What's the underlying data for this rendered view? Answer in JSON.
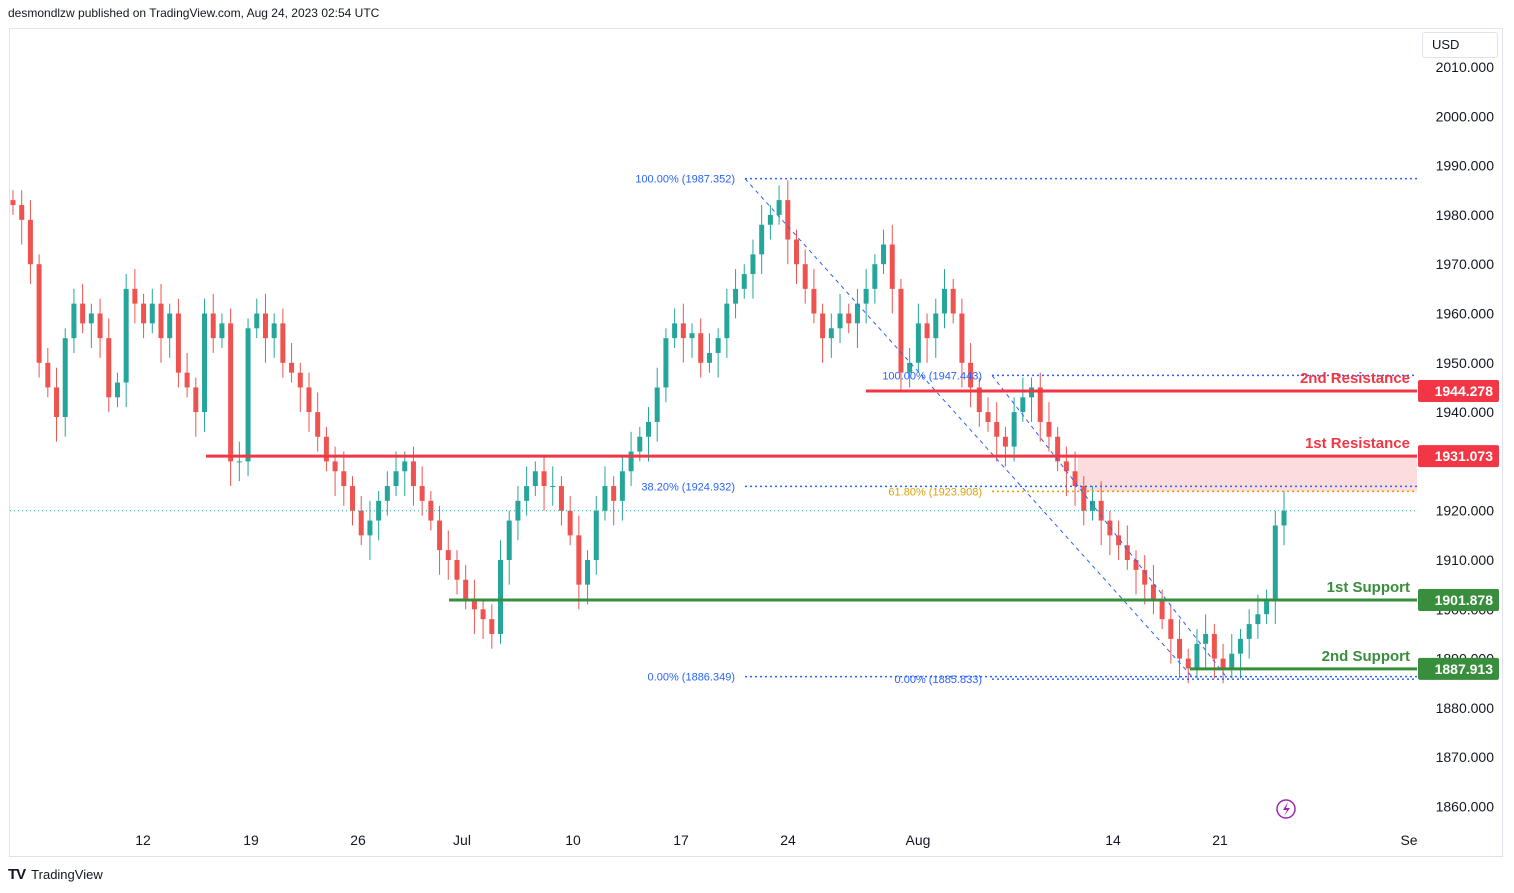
{
  "header": {
    "attribution": "desmondlzw published on TradingView.com, Aug 24, 2023 02:54 UTC"
  },
  "footer": {
    "logo": "TV",
    "brand": "TradingView"
  },
  "price_scale": {
    "currency": "USD"
  },
  "colors": {
    "up": "#26a69a",
    "down": "#ef5350",
    "resistance": "#f23645",
    "support": "#388e3c",
    "fib": "#2962ff",
    "fib_gold": "#e0a100",
    "zone": "#fcd6d6",
    "last_price_line": "#26a69a"
  },
  "chart_data": {
    "type": "candlestick",
    "symbol_hint": "",
    "x_tick_labels": [
      "12",
      "19",
      "26",
      "Jul",
      "10",
      "17",
      "24",
      "Aug",
      "14",
      "21",
      "Se"
    ],
    "y_tick_labels": [
      "2010.000",
      "2000.000",
      "1990.000",
      "1980.000",
      "1970.000",
      "1960.000",
      "1950.000",
      "1940.000",
      "1930.000",
      "1920.000",
      "1910.000",
      "1900.000",
      "1890.000",
      "1880.000",
      "1870.000",
      "1860.000"
    ],
    "ylim": [
      1853,
      2012
    ],
    "levels": [
      {
        "name": "2nd Resistance",
        "value": 1944.278,
        "badge": "1944.278",
        "kind": "resistance"
      },
      {
        "name": "1st Resistance",
        "value": 1931.073,
        "badge": "1931.073",
        "kind": "resistance"
      },
      {
        "name": "1st Support",
        "value": 1901.878,
        "badge": "1901.878",
        "kind": "support"
      },
      {
        "name": "2nd Support",
        "value": 1887.913,
        "badge": "1887.913",
        "kind": "support"
      }
    ],
    "fib_labels": [
      {
        "text": "100.00% (1987.352)",
        "value": 1987.352
      },
      {
        "text": "38.20% (1924.932)",
        "value": 1924.932
      },
      {
        "text": "0.00% (1886.349)",
        "value": 1886.349
      },
      {
        "text": "100.00% (1947.443)",
        "value": 1947.443
      },
      {
        "text": "61.80% (1923.908)",
        "value": 1923.908
      },
      {
        "text": "0.00% (1885.833)",
        "value": 1885.833
      }
    ],
    "resistance_zone": [
      1923.9,
      1931.073
    ],
    "last_price": 1920.0,
    "price_path": [
      1982,
      1979,
      1970,
      1950,
      1945,
      1939,
      1955,
      1962,
      1958,
      1960,
      1955,
      1943,
      1946,
      1965,
      1962,
      1958,
      1962,
      1955,
      1960,
      1948,
      1945,
      1940,
      1960,
      1955,
      1958,
      1930,
      1930,
      1957,
      1960,
      1955,
      1958,
      1950,
      1948,
      1945,
      1940,
      1935,
      1930,
      1928,
      1925,
      1920,
      1915,
      1918,
      1922,
      1925,
      1928,
      1930,
      1925,
      1922,
      1918,
      1912,
      1910,
      1906,
      1902,
      1900,
      1898,
      1895,
      1910,
      1918,
      1922,
      1925,
      1928,
      1925,
      1925,
      1920,
      1915,
      1905,
      1910,
      1920,
      1925,
      1922,
      1928,
      1932,
      1935,
      1938,
      1945,
      1955,
      1958,
      1955,
      1956,
      1950,
      1952,
      1955,
      1962,
      1965,
      1968,
      1972,
      1978,
      1980,
      1983,
      1975,
      1970,
      1965,
      1960,
      1955,
      1957,
      1960,
      1958,
      1962,
      1965,
      1970,
      1974,
      1965,
      1948,
      1950,
      1958,
      1955,
      1960,
      1965,
      1960,
      1950,
      1945,
      1940,
      1938,
      1935,
      1933,
      1940,
      1943,
      1945,
      1938,
      1935,
      1930,
      1928,
      1925,
      1920,
      1922,
      1918,
      1915,
      1913,
      1910,
      1908,
      1905,
      1902,
      1898,
      1894,
      1890,
      1888,
      1893,
      1895,
      1890,
      1888,
      1891,
      1894,
      1897,
      1899,
      1902,
      1917,
      1920
    ]
  }
}
